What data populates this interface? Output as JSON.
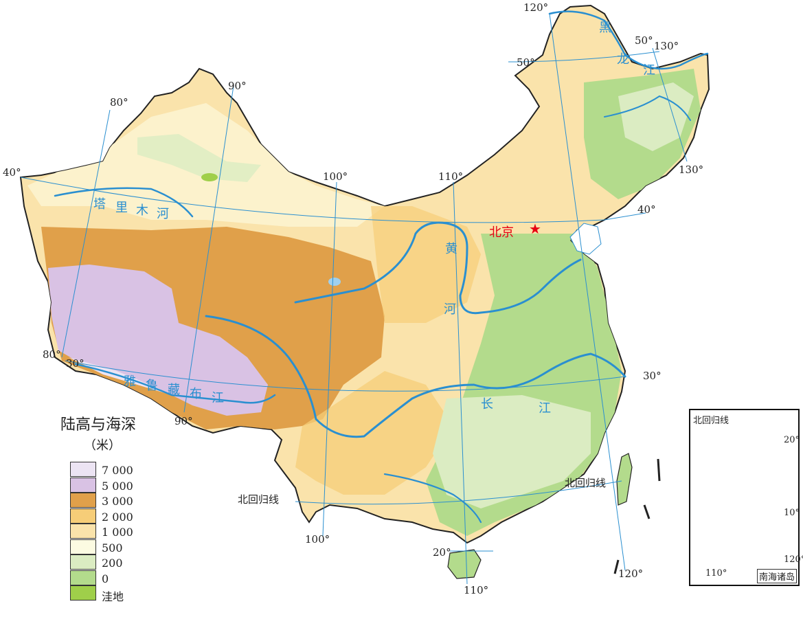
{
  "capital": {
    "label": "北京"
  },
  "legend": {
    "title": "陆高与海深",
    "unit": "（米）",
    "items": [
      {
        "label": "7 000",
        "color": "#ece4f3"
      },
      {
        "label": "5 000",
        "color": "#d9c2e4"
      },
      {
        "label": "3 000",
        "color": "#e0a04a"
      },
      {
        "label": "2 000",
        "color": "#f6cd78"
      },
      {
        "label": "1 000",
        "color": "#fae3ab"
      },
      {
        "label": "500",
        "color": "#fcfbe2"
      },
      {
        "label": "200",
        "color": "#dbecc2"
      },
      {
        "label": "0",
        "color": "#b3db8c"
      },
      {
        "label": "洼地",
        "color": "#9fcf4a"
      }
    ]
  },
  "rivers": {
    "tarim": [
      "塔",
      "里",
      "木",
      "河"
    ],
    "yellow": [
      "黄",
      "河"
    ],
    "yangtze": [
      "长",
      "江"
    ],
    "heilong": [
      "黑",
      "龙",
      "江"
    ],
    "yarlung": [
      "雅",
      "鲁",
      "藏",
      "布",
      "江"
    ]
  },
  "labels": {
    "tropic": "北回归线",
    "lon_80": "80°",
    "lon_90": "90°",
    "lon_100": "100°",
    "lon_110": "110°",
    "lon_120": "120°",
    "lon_130": "130°",
    "lat_20": "20°",
    "lat_30": "30°",
    "lat_40": "40°",
    "lat_50": "50°"
  },
  "inset": {
    "title": "南海诸岛",
    "tropic": "北回归线",
    "lat_20": "20°",
    "lat_10": "10°",
    "lon_110": "110°",
    "lon_120": "120°"
  },
  "colors": {
    "river": "#2a8fd0",
    "capital": "#e60012",
    "grid": "#2a8fd0",
    "border": "#222222"
  }
}
